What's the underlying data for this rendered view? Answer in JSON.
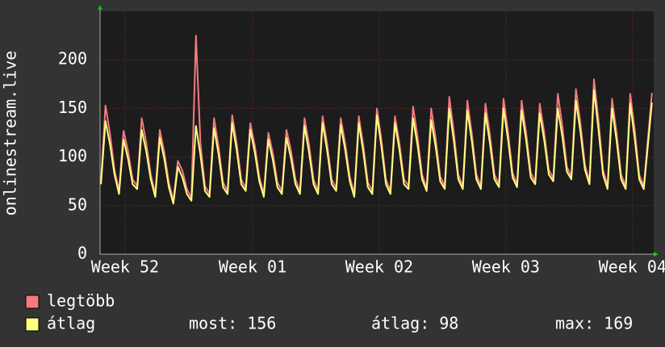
{
  "chart_data": {
    "type": "line",
    "y_label": "onlinestream.live",
    "xlim": [
      0,
      30.6
    ],
    "ylim": [
      0,
      250
    ],
    "yticks": [
      0,
      50,
      100,
      150,
      200
    ],
    "xticks": [
      {
        "value": 1.38,
        "label": "Week 52"
      },
      {
        "value": 8.43,
        "label": "Week 01"
      },
      {
        "value": 15.43,
        "label": "Week 02"
      },
      {
        "value": 22.43,
        "label": "Week 03"
      },
      {
        "value": 29.43,
        "label": "Week 04"
      }
    ],
    "grid": true,
    "x": [
      0.05,
      0.3,
      0.55,
      0.8,
      1.05,
      1.3,
      1.55,
      1.8,
      2.05,
      2.3,
      2.55,
      2.8,
      3.05,
      3.3,
      3.55,
      3.8,
      4.05,
      4.3,
      4.55,
      4.8,
      5.05,
      5.3,
      5.55,
      5.8,
      6.05,
      6.3,
      6.55,
      6.8,
      7.05,
      7.3,
      7.55,
      7.8,
      8.05,
      8.3,
      8.55,
      8.8,
      9.05,
      9.3,
      9.55,
      9.8,
      10.05,
      10.3,
      10.55,
      10.8,
      11.05,
      11.3,
      11.55,
      11.8,
      12.05,
      12.3,
      12.55,
      12.8,
      13.05,
      13.3,
      13.55,
      13.8,
      14.05,
      14.3,
      14.55,
      14.8,
      15.05,
      15.3,
      15.55,
      15.8,
      16.05,
      16.3,
      16.55,
      16.8,
      17.05,
      17.3,
      17.55,
      17.8,
      18.05,
      18.3,
      18.55,
      18.8,
      19.05,
      19.3,
      19.55,
      19.8,
      20.05,
      20.3,
      20.55,
      20.8,
      21.05,
      21.3,
      21.55,
      21.8,
      22.05,
      22.3,
      22.55,
      22.8,
      23.05,
      23.3,
      23.55,
      23.8,
      24.05,
      24.3,
      24.55,
      24.8,
      25.05,
      25.3,
      25.55,
      25.8,
      26.05,
      26.3,
      26.55,
      26.8,
      27.05,
      27.3,
      27.55,
      27.8,
      28.05,
      28.3,
      28.55,
      28.8,
      29.05,
      29.3,
      29.55,
      29.8,
      30.05,
      30.5
    ],
    "series": [
      {
        "name": "legtöbb",
        "color": "#f47a80",
        "values": [
          75,
          153,
          124,
          87,
          65,
          127,
          106,
          77,
          70,
          140,
          115,
          82,
          62,
          128,
          105,
          74,
          55,
          96,
          86,
          67,
          58,
          225,
          114,
          70,
          62,
          140,
          111,
          74,
          65,
          143,
          114,
          77,
          68,
          135,
          112,
          80,
          62,
          125,
          104,
          74,
          65,
          128,
          107,
          77,
          65,
          140,
          113,
          77,
          65,
          142,
          114,
          77,
          68,
          140,
          114,
          80,
          62,
          142,
          112,
          74,
          65,
          150,
          118,
          77,
          65,
          142,
          114,
          77,
          70,
          152,
          121,
          82,
          68,
          150,
          119,
          80,
          70,
          162,
          126,
          82,
          70,
          158,
          124,
          82,
          70,
          155,
          123,
          82,
          72,
          160,
          126,
          84,
          72,
          158,
          125,
          84,
          75,
          155,
          125,
          87,
          78,
          165,
          132,
          90,
          80,
          170,
          135,
          92,
          75,
          180,
          138,
          87,
          70,
          160,
          125,
          82,
          70,
          165,
          128,
          82,
          70,
          166
        ]
      },
      {
        "name": "átlag",
        "color": "#ffff80",
        "values": [
          72,
          137,
          113,
          82,
          62,
          118,
          98,
          72,
          67,
          128,
          106,
          77,
          59,
          120,
          98,
          69,
          52,
          90,
          79,
          62,
          55,
          132,
          102,
          65,
          59,
          130,
          103,
          69,
          62,
          135,
          107,
          72,
          65,
          128,
          105,
          75,
          59,
          118,
          97,
          69,
          62,
          120,
          99,
          72,
          62,
          132,
          105,
          72,
          62,
          135,
          107,
          72,
          65,
          133,
          107,
          75,
          59,
          135,
          105,
          69,
          62,
          143,
          111,
          72,
          62,
          135,
          107,
          72,
          67,
          140,
          112,
          77,
          65,
          138,
          110,
          75,
          67,
          150,
          117,
          77,
          67,
          148,
          116,
          77,
          67,
          145,
          114,
          77,
          69,
          150,
          118,
          79,
          69,
          148,
          117,
          79,
          72,
          145,
          117,
          82,
          75,
          150,
          121,
          85,
          77,
          158,
          126,
          87,
          72,
          169,
          128,
          82,
          67,
          150,
          117,
          77,
          67,
          155,
          119,
          77,
          67,
          156
        ]
      }
    ],
    "stats": [
      {
        "label": "most:",
        "value": 156
      },
      {
        "label": "átlag:",
        "value": 98
      },
      {
        "label": "max:",
        "value": 169
      }
    ]
  }
}
